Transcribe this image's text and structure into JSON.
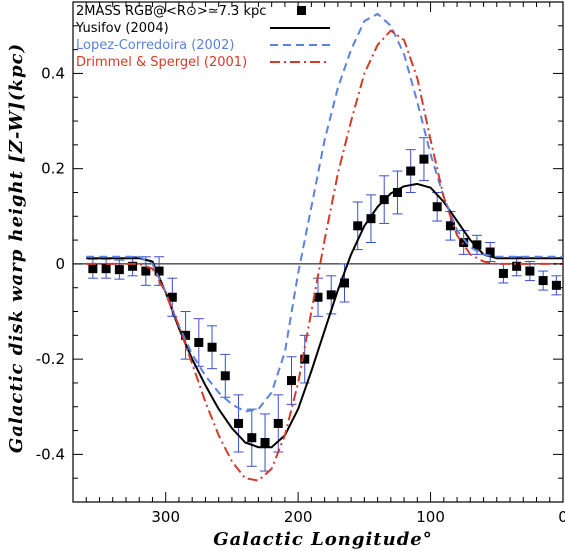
{
  "chart_data": {
    "type": "scatter",
    "xlabel": "Galactic Longitude°",
    "ylabel": "Galactic disk warp height [Z-W](kpc)",
    "xlim": [
      370,
      0
    ],
    "ylim": [
      -0.5,
      0.55
    ],
    "x_reversed": true,
    "x_ticks": [
      300,
      200,
      100,
      0
    ],
    "y_ticks": [
      -0.4,
      -0.2,
      0,
      0.2,
      0.4
    ],
    "x_tick_labels": [
      "300",
      "200",
      "100",
      "0"
    ],
    "y_tick_labels": [
      "-0.4",
      "-0.2",
      "0",
      "0.2",
      "0.4"
    ],
    "zero_line": true,
    "legend_position": "top-center",
    "series": [
      {
        "name": "2MASS RGB@<R⊙>≃7.3  kpc",
        "kind": "points_with_errorbars",
        "color": "#000000",
        "errorbar_color": "#3a4fd0",
        "x": [
          355,
          345,
          335,
          325,
          315,
          305,
          295,
          285,
          275,
          265,
          255,
          245,
          235,
          225,
          215,
          205,
          195,
          185,
          175,
          165,
          155,
          145,
          135,
          125,
          115,
          105,
          95,
          85,
          75,
          65,
          55,
          45,
          35,
          25,
          15,
          5
        ],
        "y": [
          -0.01,
          -0.01,
          -0.012,
          -0.005,
          -0.015,
          -0.015,
          -0.07,
          -0.15,
          -0.165,
          -0.175,
          -0.235,
          -0.335,
          -0.365,
          -0.375,
          -0.335,
          -0.245,
          -0.2,
          -0.07,
          -0.065,
          -0.04,
          0.08,
          0.095,
          0.135,
          0.15,
          0.195,
          0.22,
          0.12,
          0.08,
          0.045,
          0.04,
          0.025,
          -0.02,
          -0.005,
          -0.015,
          -0.035,
          -0.045
        ],
        "err": [
          0.02,
          0.02,
          0.02,
          0.02,
          0.03,
          0.03,
          0.04,
          0.05,
          0.05,
          0.045,
          0.045,
          0.06,
          0.06,
          0.06,
          0.06,
          0.05,
          0.05,
          0.04,
          0.04,
          0.04,
          0.05,
          0.05,
          0.05,
          0.045,
          0.045,
          0.045,
          0.03,
          0.03,
          0.025,
          0.02,
          0.02,
          0.02,
          0.02,
          0.02,
          0.02,
          0.02
        ]
      },
      {
        "name": "Yusifov (2004)",
        "kind": "line",
        "color": "#000000",
        "dash": "",
        "x": [
          360,
          350,
          340,
          330,
          320,
          310,
          300,
          290,
          280,
          270,
          260,
          250,
          240,
          230,
          220,
          210,
          200,
          190,
          180,
          170,
          160,
          150,
          140,
          130,
          120,
          110,
          100,
          90,
          80,
          70,
          60,
          50,
          40,
          30,
          20,
          10,
          0
        ],
        "y": [
          0.012,
          0.012,
          0.012,
          0.012,
          0.012,
          0.005,
          -0.06,
          -0.135,
          -0.2,
          -0.255,
          -0.305,
          -0.345,
          -0.375,
          -0.385,
          -0.385,
          -0.36,
          -0.305,
          -0.225,
          -0.14,
          -0.055,
          0.02,
          0.08,
          0.12,
          0.148,
          0.163,
          0.168,
          0.16,
          0.13,
          0.09,
          0.05,
          0.02,
          0.012,
          0.012,
          0.012,
          0.012,
          0.012,
          0.012
        ]
      },
      {
        "name": "Lopez-Corredoira (2002)",
        "kind": "line",
        "color": "#5b82e0",
        "dash": "8,5",
        "x": [
          360,
          350,
          340,
          330,
          320,
          310,
          300,
          290,
          280,
          270,
          260,
          250,
          240,
          230,
          220,
          210,
          200,
          190,
          180,
          170,
          160,
          150,
          140,
          130,
          120,
          110,
          100,
          90,
          80,
          70,
          60,
          50,
          40,
          30,
          20,
          10,
          0
        ],
        "y": [
          0.015,
          0.015,
          0.015,
          0.015,
          0.015,
          0.0,
          -0.06,
          -0.13,
          -0.19,
          -0.235,
          -0.27,
          -0.295,
          -0.31,
          -0.305,
          -0.27,
          -0.185,
          -0.02,
          0.12,
          0.26,
          0.37,
          0.45,
          0.51,
          0.525,
          0.5,
          0.44,
          0.34,
          0.23,
          0.14,
          0.07,
          0.035,
          0.02,
          0.015,
          0.015,
          0.015,
          0.015,
          0.015,
          0.015
        ]
      },
      {
        "name": "Drimmel & Spergel (2001)",
        "kind": "line",
        "color": "#d63a2a",
        "dash": "10,4,2,4",
        "x": [
          360,
          350,
          340,
          330,
          320,
          310,
          300,
          290,
          280,
          270,
          260,
          250,
          240,
          230,
          220,
          210,
          200,
          190,
          180,
          170,
          160,
          150,
          140,
          130,
          120,
          110,
          100,
          90,
          80,
          70,
          60,
          50,
          40,
          30,
          20,
          10,
          0
        ],
        "y": [
          0.0,
          0.0,
          0.0,
          0.0,
          0.0,
          -0.01,
          -0.06,
          -0.13,
          -0.21,
          -0.29,
          -0.36,
          -0.415,
          -0.45,
          -0.455,
          -0.43,
          -0.36,
          -0.25,
          -0.1,
          0.05,
          0.19,
          0.3,
          0.4,
          0.46,
          0.49,
          0.47,
          0.39,
          0.26,
          0.14,
          0.06,
          0.02,
          0.005,
          0.0,
          0.0,
          0.0,
          0.0,
          0.0,
          0.0
        ]
      }
    ]
  }
}
